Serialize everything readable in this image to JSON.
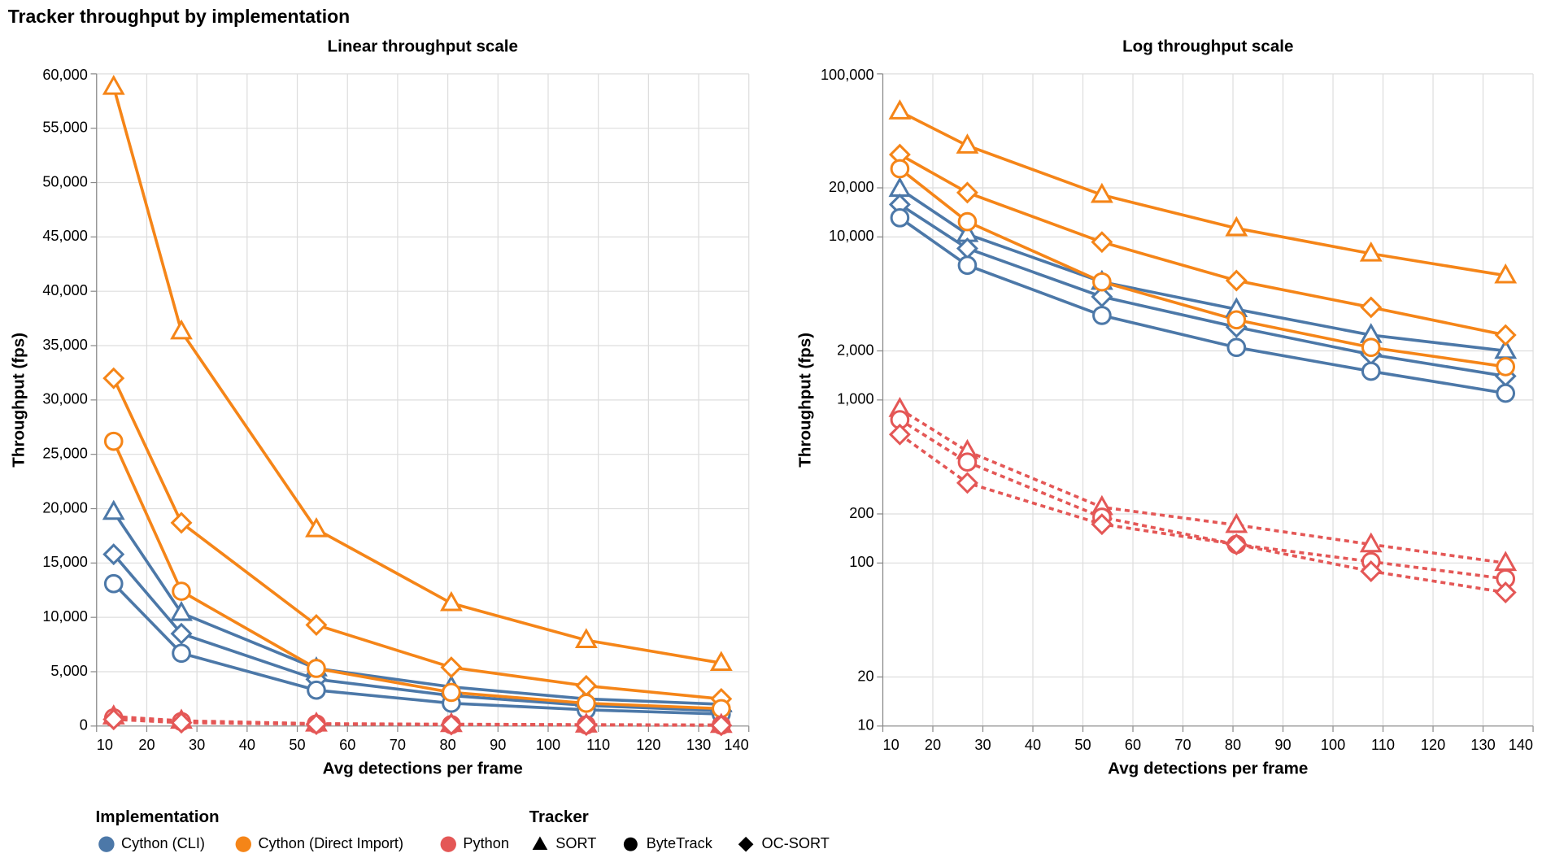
{
  "title": "Tracker throughput by implementation",
  "legend": {
    "implementation": {
      "title": "Implementation",
      "items": [
        {
          "name": "Cython (CLI)",
          "color": "#4c78a8"
        },
        {
          "name": "Cython (Direct Import)",
          "color": "#f58518"
        },
        {
          "name": "Python",
          "color": "#e45756"
        }
      ]
    },
    "tracker": {
      "title": "Tracker",
      "items": [
        {
          "name": "SORT",
          "shape": "triangle"
        },
        {
          "name": "ByteTrack",
          "shape": "circle"
        },
        {
          "name": "OC-SORT",
          "shape": "diamond"
        }
      ]
    }
  },
  "chart_data": [
    {
      "type": "line",
      "title": "Linear throughput scale",
      "x_label": "Avg detections per frame",
      "y_label": "Throughput (fps)",
      "log_y": false,
      "grid": true,
      "xlim": [
        10,
        140
      ],
      "xticks": [
        10,
        20,
        30,
        40,
        50,
        60,
        70,
        80,
        90,
        100,
        110,
        120,
        130,
        140
      ],
      "ylim": [
        0,
        60000
      ],
      "yticks": [
        0,
        {
          "value": 5000,
          "label": "5,000"
        },
        {
          "value": 10000,
          "label": "10,000"
        },
        {
          "value": 15000,
          "label": "15,000"
        },
        {
          "value": 20000,
          "label": "20,000"
        },
        {
          "value": 25000,
          "label": "25,000"
        },
        {
          "value": 30000,
          "label": "30,000"
        },
        {
          "value": 35000,
          "label": "35,000"
        },
        {
          "value": 40000,
          "label": "40,000"
        },
        {
          "value": 45000,
          "label": "45,000"
        },
        {
          "value": 50000,
          "label": "50,000"
        },
        {
          "value": 55000,
          "label": "55,000"
        },
        {
          "value": 60000,
          "label": "60,000"
        }
      ],
      "x": [
        13.4,
        26.9,
        53.8,
        80.7,
        107.6,
        134.5
      ],
      "series": [
        {
          "implementation": "Cython (CLI)",
          "tracker": "SORT",
          "color": "#4c78a8",
          "dashed": false,
          "values": [
            19700,
            10400,
            5300,
            3600,
            2500,
            2000
          ]
        },
        {
          "implementation": "Cython (CLI)",
          "tracker": "OC-SORT",
          "color": "#4c78a8",
          "dashed": false,
          "values": [
            15800,
            8500,
            4300,
            2800,
            1900,
            1400
          ]
        },
        {
          "implementation": "Cython (CLI)",
          "tracker": "ByteTrack",
          "color": "#4c78a8",
          "dashed": false,
          "values": [
            13100,
            6700,
            3300,
            2100,
            1500,
            1100
          ]
        },
        {
          "implementation": "Cython (Direct Import)",
          "tracker": "SORT",
          "color": "#f58518",
          "dashed": false,
          "values": [
            58800,
            36300,
            18100,
            11300,
            7900,
            5800
          ]
        },
        {
          "implementation": "Cython (Direct Import)",
          "tracker": "OC-SORT",
          "color": "#f58518",
          "dashed": false,
          "values": [
            32000,
            18700,
            9300,
            5400,
            3700,
            2500
          ]
        },
        {
          "implementation": "Cython (Direct Import)",
          "tracker": "ByteTrack",
          "color": "#f58518",
          "dashed": false,
          "values": [
            26200,
            12400,
            5300,
            3100,
            2100,
            1600
          ]
        },
        {
          "implementation": "Python",
          "tracker": "SORT",
          "color": "#e45756",
          "dashed": true,
          "values": [
            880,
            485,
            220,
            171,
            130,
            100
          ]
        },
        {
          "implementation": "Python",
          "tracker": "ByteTrack",
          "color": "#e45756",
          "dashed": true,
          "values": [
            757,
            416,
            191,
            130,
            102,
            80
          ]
        },
        {
          "implementation": "Python",
          "tracker": "OC-SORT",
          "color": "#e45756",
          "dashed": true,
          "values": [
            614,
            310,
            173,
            130,
            89,
            66
          ]
        }
      ]
    },
    {
      "type": "line",
      "title": "Log throughput scale",
      "x_label": "Avg detections per frame",
      "y_label": "Throughput (fps)",
      "log_y": true,
      "grid": true,
      "xlim": [
        10,
        140
      ],
      "xticks": [
        10,
        20,
        30,
        40,
        50,
        60,
        70,
        80,
        90,
        100,
        110,
        120,
        130,
        140
      ],
      "ylim": [
        10,
        100000
      ],
      "yticks": [
        10,
        20,
        100,
        200,
        {
          "value": 1000,
          "label": "1,000"
        },
        {
          "value": 2000,
          "label": "2,000"
        },
        {
          "value": 10000,
          "label": "10,000"
        },
        {
          "value": 20000,
          "label": "20,000"
        },
        {
          "value": 100000,
          "label": "100,000"
        }
      ],
      "x": [
        13.4,
        26.9,
        53.8,
        80.7,
        107.6,
        134.5
      ],
      "series": [
        {
          "implementation": "Cython (CLI)",
          "tracker": "SORT",
          "color": "#4c78a8",
          "dashed": false,
          "values": [
            19700,
            10400,
            5300,
            3600,
            2500,
            2000
          ]
        },
        {
          "implementation": "Cython (CLI)",
          "tracker": "OC-SORT",
          "color": "#4c78a8",
          "dashed": false,
          "values": [
            15800,
            8500,
            4300,
            2800,
            1900,
            1400
          ]
        },
        {
          "implementation": "Cython (CLI)",
          "tracker": "ByteTrack",
          "color": "#4c78a8",
          "dashed": false,
          "values": [
            13100,
            6700,
            3300,
            2100,
            1500,
            1100
          ]
        },
        {
          "implementation": "Cython (Direct Import)",
          "tracker": "SORT",
          "color": "#f58518",
          "dashed": false,
          "values": [
            58800,
            36300,
            18100,
            11300,
            7900,
            5800
          ]
        },
        {
          "implementation": "Cython (Direct Import)",
          "tracker": "OC-SORT",
          "color": "#f58518",
          "dashed": false,
          "values": [
            32000,
            18700,
            9300,
            5400,
            3700,
            2500
          ]
        },
        {
          "implementation": "Cython (Direct Import)",
          "tracker": "ByteTrack",
          "color": "#f58518",
          "dashed": false,
          "values": [
            26200,
            12400,
            5300,
            3100,
            2100,
            1600
          ]
        },
        {
          "implementation": "Python",
          "tracker": "SORT",
          "color": "#e45756",
          "dashed": true,
          "values": [
            880,
            485,
            220,
            171,
            130,
            100
          ]
        },
        {
          "implementation": "Python",
          "tracker": "ByteTrack",
          "color": "#e45756",
          "dashed": true,
          "values": [
            757,
            416,
            191,
            130,
            102,
            80
          ]
        },
        {
          "implementation": "Python",
          "tracker": "OC-SORT",
          "color": "#e45756",
          "dashed": true,
          "values": [
            614,
            310,
            173,
            130,
            89,
            66
          ]
        }
      ]
    }
  ]
}
